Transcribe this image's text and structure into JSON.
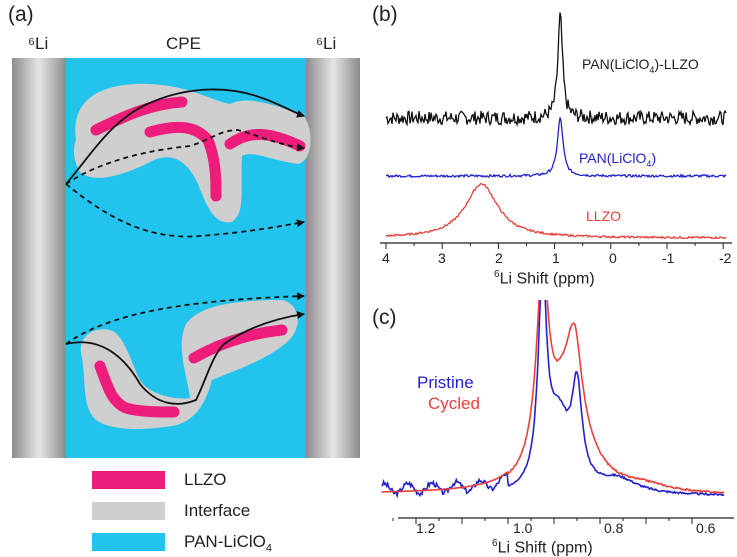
{
  "panel_a": {
    "label": "(a)",
    "left_electrode": "⁶Li",
    "center_label": "CPE",
    "right_electrode": "⁶Li",
    "legend": [
      {
        "label": "LLZO",
        "color": "#ee1c7a"
      },
      {
        "label": "Interface",
        "color": "#cfcfcf"
      },
      {
        "label": "PAN-LiClO",
        "sub": "4",
        "color": "#22c4ee"
      }
    ]
  },
  "panel_b": {
    "label": "(b)",
    "traces": [
      {
        "name_pre": "PAN(LiClO",
        "name_sub": "4",
        "name_post": ")-LLZO",
        "color": "#111111",
        "peak_ppm": 0.9
      },
      {
        "name_pre": "PAN(LiClO",
        "name_sub": "4",
        "name_post": ")",
        "color": "#2222cc",
        "peak_ppm": 0.9
      },
      {
        "name_pre": "LLZO",
        "name_sub": "",
        "name_post": "",
        "color": "#e8403a",
        "peak_ppm": 2.3
      }
    ],
    "x_ticks": [
      "4",
      "3",
      "2",
      "1",
      "0",
      "-1",
      "-2"
    ],
    "xlabel_sup": "6",
    "xlabel": "Li Shift (ppm)"
  },
  "panel_c": {
    "label": "(c)",
    "legend": [
      {
        "label": "Pristine",
        "color": "#2222cc"
      },
      {
        "label": "Cycled",
        "color": "#e8403a"
      }
    ],
    "x_ticks": [
      "1.2",
      "1.0",
      "0.8",
      "0.6"
    ],
    "xlabel_sup": "6",
    "xlabel": "Li Shift (ppm)"
  },
  "colors": {
    "electrode_dark": "#8c8c8c",
    "electrode_light": "#e6e6e6",
    "electrolyte": "#22c4ee",
    "interface": "#cfcfcf",
    "llzo": "#ee1c7a"
  }
}
